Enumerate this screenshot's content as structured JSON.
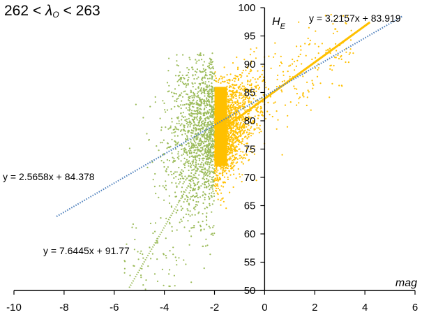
{
  "chart_data": {
    "type": "scatter",
    "title": {
      "lhs": "262",
      "lt": "<",
      "symbol": "λ",
      "subscript": "O",
      "rhs": "263"
    },
    "xlabel": "mag",
    "ylabel": {
      "main": "H",
      "subscript": "E"
    },
    "xlim": [
      -10,
      6
    ],
    "ylim": [
      50,
      100
    ],
    "xticks": [
      "-10",
      "-8",
      "-6",
      "-4",
      "-2",
      "0",
      "2",
      "4",
      "6"
    ],
    "yticks": [
      "50",
      "55",
      "60",
      "65",
      "70",
      "75",
      "80",
      "85",
      "90",
      "95",
      "100"
    ],
    "grid": false,
    "legend": "none",
    "series": [
      {
        "color": "#9bbb59",
        "distribution": {
          "x_range": [
            -5.8,
            -2.0
          ],
          "y_center": 78,
          "y_spread": 9
        },
        "fit": {
          "equation": "y = 7.6445x + 91.77",
          "slope": 7.6445,
          "intercept": 91.77,
          "x_range": [
            -5.4,
            -2.0
          ],
          "style": "dotted"
        }
      },
      {
        "color": "#ffc000",
        "distribution": {
          "x_range": [
            -2.0,
            4.6
          ],
          "y_center": 85,
          "y_spread": 5
        },
        "fit": {
          "equation": "y = 3.2157x + 83.919",
          "slope": 3.2157,
          "intercept": 83.919,
          "x_range": [
            -2.0,
            4.2
          ],
          "style": "solid"
        }
      },
      {
        "color": "#4f81bd",
        "fit": {
          "equation": "y = 2.5658x + 84.378",
          "slope": 2.5658,
          "intercept": 84.378,
          "x_range": [
            -8.3,
            5.5
          ],
          "style": "dotted"
        }
      }
    ]
  },
  "colors": {
    "green": "#9bbb59",
    "orange": "#ffc000",
    "blue": "#4f81bd",
    "axis": "#000000"
  }
}
